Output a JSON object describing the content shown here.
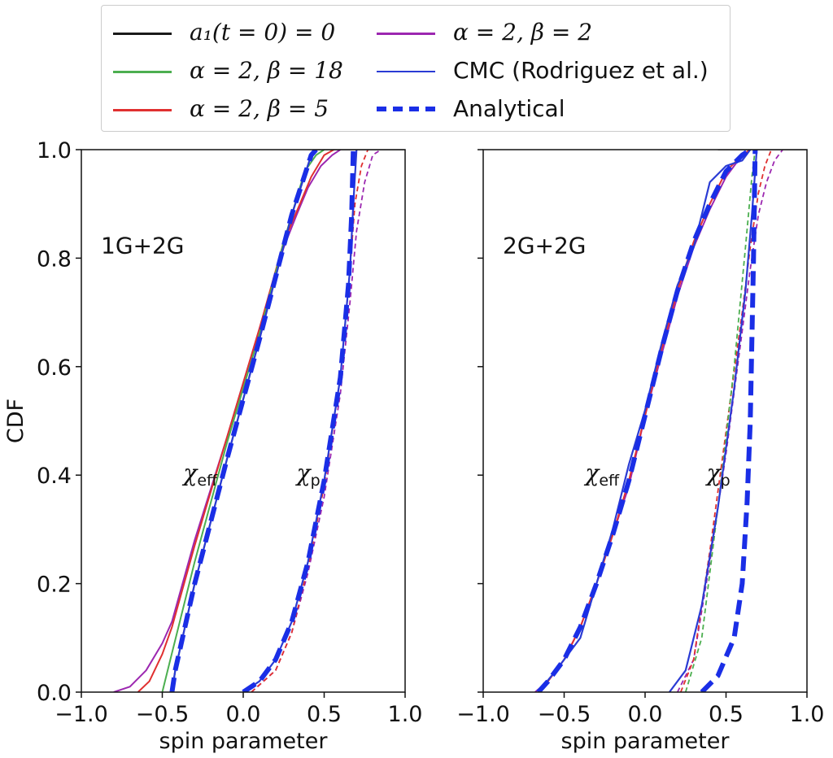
{
  "legend": {
    "items": [
      {
        "label": "a₁(t = 0) = 0",
        "color": "#1a1a1a",
        "style": "solid"
      },
      {
        "label": "α = 2, β = 18",
        "color": "#4caf50",
        "style": "solid"
      },
      {
        "label": "α = 2, β = 5",
        "color": "#e03030",
        "style": "solid"
      },
      {
        "label": "α = 2, β = 2",
        "color": "#9c27b0",
        "style": "solid"
      },
      {
        "label": "CMC (Rodriguez et al.)",
        "color": "#2a3bd4",
        "style": "solid"
      },
      {
        "label": "Analytical",
        "color": "#1a2ee6",
        "style": "dashed"
      }
    ]
  },
  "chart_data": [
    {
      "type": "line",
      "panel_label": "1G+2G",
      "xlabel": "spin parameter",
      "ylabel": "CDF",
      "xlim": [
        -1.0,
        1.0
      ],
      "ylim": [
        0.0,
        1.0
      ],
      "xticks": [
        "−1.0",
        "−0.5",
        "0.0",
        "0.5",
        "1.0"
      ],
      "yticks": [
        "0.0",
        "0.2",
        "0.4",
        "0.6",
        "0.8",
        "1.0"
      ],
      "annotations": [
        {
          "text": "χeff",
          "base": "χ",
          "sub": "eff",
          "x": -0.37,
          "y": 0.39
        },
        {
          "text": "χp",
          "base": "χ",
          "sub": "p",
          "x": 0.33,
          "y": 0.39
        }
      ],
      "series": [
        {
          "name": "α = 2, β = 2",
          "group": "chi_eff",
          "color": "#9c27b0",
          "style": "solid",
          "x": [
            -0.8,
            -0.7,
            -0.6,
            -0.5,
            -0.44,
            -0.3,
            -0.1,
            0.1,
            0.25,
            0.33,
            0.4,
            0.48,
            0.55,
            0.6
          ],
          "y": [
            0.0,
            0.01,
            0.04,
            0.09,
            0.13,
            0.28,
            0.47,
            0.67,
            0.82,
            0.88,
            0.93,
            0.97,
            0.99,
            1.0
          ]
        },
        {
          "name": "α = 2, β = 5",
          "group": "chi_eff",
          "color": "#e03030",
          "style": "solid",
          "x": [
            -0.65,
            -0.58,
            -0.5,
            -0.44,
            -0.3,
            -0.1,
            0.1,
            0.25,
            0.35,
            0.42,
            0.5,
            0.56
          ],
          "y": [
            0.0,
            0.02,
            0.07,
            0.12,
            0.27,
            0.47,
            0.67,
            0.83,
            0.9,
            0.95,
            0.99,
            1.0
          ]
        },
        {
          "name": "α = 2, β = 18",
          "group": "chi_eff",
          "color": "#4caf50",
          "style": "solid",
          "x": [
            -0.5,
            -0.45,
            -0.3,
            -0.1,
            0.1,
            0.25,
            0.38,
            0.45,
            0.5
          ],
          "y": [
            0.0,
            0.06,
            0.24,
            0.46,
            0.66,
            0.83,
            0.96,
            0.99,
            1.0
          ]
        },
        {
          "name": "a₁(t = 0) = 0",
          "group": "chi_eff",
          "color": "#1a1a1a",
          "style": "solid",
          "x": [
            -0.44,
            -0.42,
            -0.3,
            -0.1,
            0.1,
            0.3,
            0.42,
            0.45
          ],
          "y": [
            0.0,
            0.04,
            0.2,
            0.43,
            0.65,
            0.88,
            0.99,
            1.0
          ]
        },
        {
          "name": "CMC (Rodriguez et al.)",
          "group": "chi_eff",
          "color": "#2a3bd4",
          "style": "solid",
          "x": [
            -0.44,
            -0.42,
            -0.3,
            -0.1,
            0.1,
            0.3,
            0.42,
            0.45
          ],
          "y": [
            0.0,
            0.04,
            0.2,
            0.43,
            0.65,
            0.88,
            0.99,
            1.0
          ]
        },
        {
          "name": "Analytical",
          "group": "chi_eff",
          "color": "#1a2ee6",
          "style": "dashed",
          "x": [
            -0.44,
            -0.42,
            -0.3,
            -0.1,
            0.1,
            0.3,
            0.42,
            0.45
          ],
          "y": [
            0.0,
            0.04,
            0.2,
            0.43,
            0.65,
            0.88,
            0.99,
            1.0
          ]
        },
        {
          "name": "α = 2, β = 2",
          "group": "chi_p",
          "color": "#9c27b0",
          "style": "dashed",
          "x": [
            0.05,
            0.2,
            0.3,
            0.4,
            0.5,
            0.6,
            0.66,
            0.7,
            0.75,
            0.8,
            0.85
          ],
          "y": [
            0.0,
            0.04,
            0.11,
            0.22,
            0.36,
            0.55,
            0.72,
            0.85,
            0.94,
            0.99,
            1.0
          ]
        },
        {
          "name": "α = 2, β = 5",
          "group": "chi_p",
          "color": "#e03030",
          "style": "dashed",
          "x": [
            0.05,
            0.2,
            0.3,
            0.4,
            0.5,
            0.6,
            0.66,
            0.69,
            0.73,
            0.77
          ],
          "y": [
            0.0,
            0.04,
            0.11,
            0.23,
            0.38,
            0.58,
            0.78,
            0.9,
            0.97,
            1.0
          ]
        },
        {
          "name": "CMC (Rodriguez et al.)",
          "group": "chi_p",
          "color": "#2a3bd4",
          "style": "solid",
          "x": [
            0.0,
            0.1,
            0.2,
            0.3,
            0.4,
            0.5,
            0.6,
            0.66,
            0.68,
            0.7
          ],
          "y": [
            0.0,
            0.02,
            0.06,
            0.13,
            0.24,
            0.39,
            0.58,
            0.78,
            0.9,
            1.0
          ]
        },
        {
          "name": "Analytical",
          "group": "chi_p",
          "color": "#1a2ee6",
          "style": "dashed",
          "x": [
            0.0,
            0.1,
            0.2,
            0.3,
            0.4,
            0.5,
            0.6,
            0.65,
            0.67,
            0.68
          ],
          "y": [
            0.0,
            0.02,
            0.06,
            0.13,
            0.24,
            0.39,
            0.58,
            0.75,
            0.88,
            1.0
          ]
        }
      ]
    },
    {
      "type": "line",
      "panel_label": "2G+2G",
      "xlabel": "spin parameter",
      "ylabel": "",
      "xlim": [
        -1.0,
        1.0
      ],
      "ylim": [
        0.0,
        1.0
      ],
      "xticks": [
        "−1.0",
        "−0.5",
        "0.0",
        "0.5",
        "1.0"
      ],
      "yticks": [],
      "annotations": [
        {
          "text": "χeff",
          "base": "χ",
          "sub": "eff",
          "x": -0.37,
          "y": 0.39
        },
        {
          "text": "χp",
          "base": "χ",
          "sub": "p",
          "x": 0.38,
          "y": 0.39
        }
      ],
      "series": [
        {
          "name": "α = 2, β = 2",
          "group": "chi_eff",
          "color": "#9c27b0",
          "style": "solid",
          "x": [
            -0.68,
            -0.6,
            -0.5,
            -0.4,
            -0.3,
            -0.2,
            -0.1,
            0.0,
            0.1,
            0.2,
            0.3,
            0.4,
            0.5,
            0.6,
            0.65
          ],
          "y": [
            0.0,
            0.02,
            0.06,
            0.12,
            0.2,
            0.29,
            0.38,
            0.51,
            0.62,
            0.73,
            0.82,
            0.89,
            0.95,
            0.99,
            1.0
          ]
        },
        {
          "name": "α = 2, β = 5",
          "group": "chi_eff",
          "color": "#e03030",
          "style": "solid",
          "x": [
            -0.66,
            -0.6,
            -0.5,
            -0.4,
            -0.3,
            -0.2,
            -0.1,
            0.0,
            0.1,
            0.2,
            0.3,
            0.4,
            0.5,
            0.6,
            0.65
          ],
          "y": [
            0.0,
            0.02,
            0.06,
            0.12,
            0.2,
            0.29,
            0.39,
            0.51,
            0.63,
            0.74,
            0.83,
            0.9,
            0.96,
            0.99,
            1.0
          ]
        },
        {
          "name": "CMC (Rodriguez et al.)",
          "group": "chi_eff",
          "color": "#2a3bd4",
          "style": "solid",
          "x": [
            -0.66,
            -0.55,
            -0.45,
            -0.4,
            -0.3,
            -0.2,
            -0.1,
            0.0,
            0.1,
            0.2,
            0.3,
            0.35,
            0.4,
            0.5,
            0.6,
            0.65
          ],
          "y": [
            0.0,
            0.04,
            0.08,
            0.1,
            0.2,
            0.3,
            0.42,
            0.52,
            0.64,
            0.75,
            0.82,
            0.88,
            0.94,
            0.97,
            0.98,
            1.0
          ]
        },
        {
          "name": "Analytical",
          "group": "chi_eff",
          "color": "#1a2ee6",
          "style": "dashed",
          "x": [
            -0.66,
            -0.6,
            -0.5,
            -0.4,
            -0.3,
            -0.2,
            -0.1,
            0.0,
            0.1,
            0.2,
            0.3,
            0.4,
            0.5,
            0.6,
            0.65
          ],
          "y": [
            0.0,
            0.02,
            0.06,
            0.12,
            0.2,
            0.29,
            0.39,
            0.51,
            0.63,
            0.74,
            0.83,
            0.9,
            0.96,
            0.99,
            1.0
          ]
        },
        {
          "name": "α = 2, β = 2",
          "group": "chi_p",
          "color": "#9c27b0",
          "style": "dashed",
          "x": [
            0.2,
            0.3,
            0.4,
            0.5,
            0.58,
            0.65,
            0.7,
            0.75,
            0.8,
            0.85
          ],
          "y": [
            0.0,
            0.06,
            0.24,
            0.44,
            0.62,
            0.78,
            0.88,
            0.94,
            0.98,
            1.0
          ]
        },
        {
          "name": "α = 2, β = 5",
          "group": "chi_p",
          "color": "#e03030",
          "style": "dashed",
          "x": [
            0.22,
            0.3,
            0.4,
            0.5,
            0.6,
            0.65,
            0.7,
            0.74,
            0.78
          ],
          "y": [
            0.0,
            0.06,
            0.26,
            0.48,
            0.7,
            0.82,
            0.92,
            0.97,
            1.0
          ]
        },
        {
          "name": "α = 2, β = 18",
          "group": "chi_p",
          "color": "#4caf50",
          "style": "dashed",
          "x": [
            0.25,
            0.35,
            0.45,
            0.55,
            0.62,
            0.66,
            0.68
          ],
          "y": [
            0.0,
            0.1,
            0.34,
            0.6,
            0.82,
            0.95,
            1.0
          ]
        },
        {
          "name": "CMC (Rodriguez et al.)",
          "group": "chi_p",
          "color": "#2a3bd4",
          "style": "solid",
          "x": [
            0.15,
            0.25,
            0.35,
            0.45,
            0.55,
            0.62,
            0.66,
            0.68,
            0.69
          ],
          "y": [
            0.0,
            0.04,
            0.16,
            0.34,
            0.56,
            0.74,
            0.88,
            0.96,
            1.0
          ]
        },
        {
          "name": "Analytical",
          "group": "chi_p",
          "color": "#1a2ee6",
          "style": "dashed",
          "x": [
            0.35,
            0.45,
            0.55,
            0.6,
            0.63,
            0.65,
            0.66,
            0.67,
            0.68
          ],
          "y": [
            0.0,
            0.03,
            0.1,
            0.2,
            0.35,
            0.5,
            0.65,
            0.8,
            1.0
          ]
        }
      ]
    }
  ]
}
